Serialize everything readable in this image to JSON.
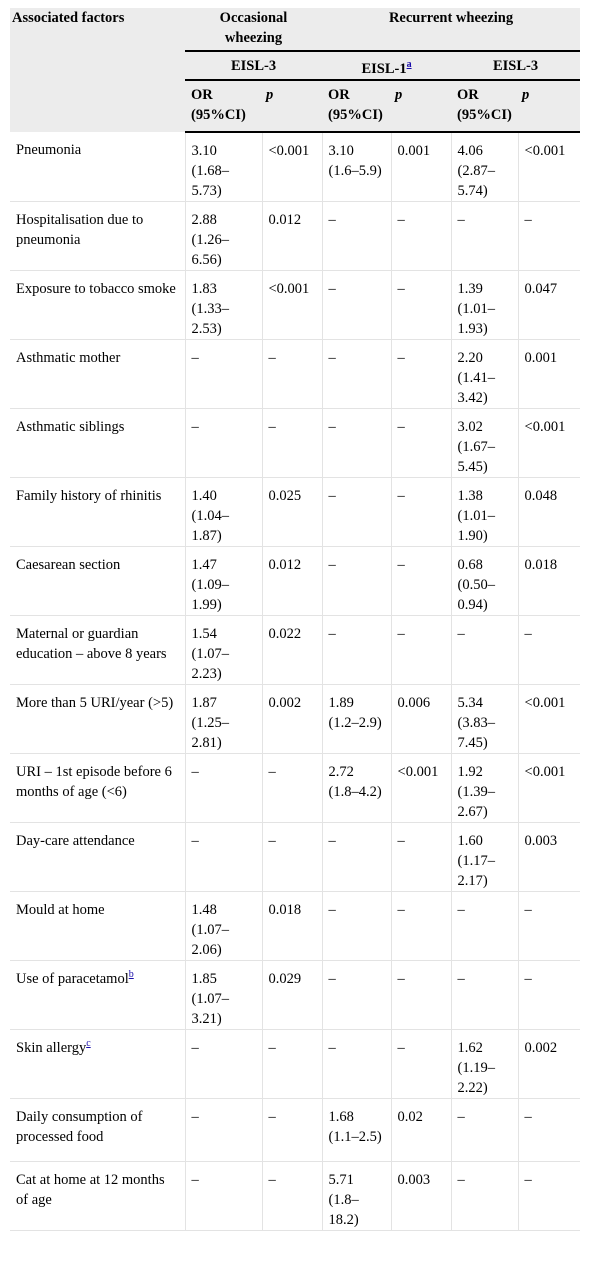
{
  "table": {
    "header": {
      "associated_factors": "Associated factors",
      "occasional_wheezing": "Occasional wheezing",
      "recurrent_wheezing": "Recurrent wheezing",
      "eisl3_occ": "EISL-3",
      "eisl1": "EISL-1",
      "eisl1_note": "a",
      "eisl3_rec": "EISL-3",
      "or_ci": "OR (95%CI)",
      "p": "p"
    },
    "rows": [
      {
        "factor": "Pneumonia",
        "note": "",
        "v": [
          "3.10 (1.68–5.73)",
          "<0.001",
          "3.10 (1.6–5.9)",
          "0.001",
          "4.06 (2.87–5.74)",
          "<0.001"
        ]
      },
      {
        "factor": "Hospitalisation due to pneumonia",
        "note": "",
        "v": [
          "2.88 (1.26–6.56)",
          "0.012",
          "–",
          "–",
          "–",
          "–"
        ]
      },
      {
        "factor": "Exposure to tobacco smoke",
        "note": "",
        "v": [
          "1.83 (1.33–2.53)",
          "<0.001",
          "–",
          "–",
          "1.39 (1.01–1.93)",
          "0.047"
        ]
      },
      {
        "factor": "Asthmatic mother",
        "note": "",
        "v": [
          "–",
          "–",
          "–",
          "–",
          "2.20 (1.41–3.42)",
          "0.001"
        ]
      },
      {
        "factor": "Asthmatic siblings",
        "note": "",
        "v": [
          "–",
          "–",
          "–",
          "–",
          "3.02 (1.67–5.45)",
          "<0.001"
        ]
      },
      {
        "factor": "Family history of rhinitis",
        "note": "",
        "v": [
          "1.40 (1.04–1.87)",
          "0.025",
          "–",
          "–",
          "1.38 (1.01–1.90)",
          "0.048"
        ]
      },
      {
        "factor": "Caesarean section",
        "note": "",
        "v": [
          "1.47 (1.09–1.99)",
          "0.012",
          "–",
          "–",
          "0.68 (0.50–0.94)",
          "0.018"
        ]
      },
      {
        "factor": "Maternal or guardian education – above 8 years",
        "note": "",
        "v": [
          "1.54 (1.07–2.23)",
          "0.022",
          "–",
          "–",
          "–",
          "–"
        ]
      },
      {
        "factor": "More than 5 URI/year (>5)",
        "note": "",
        "v": [
          "1.87 (1.25–2.81)",
          "0.002",
          "1.89 (1.2–2.9)",
          "0.006",
          "5.34 (3.83–7.45)",
          "<0.001"
        ]
      },
      {
        "factor": "URI – 1st episode before 6 months of age (<6)",
        "note": "",
        "v": [
          "–",
          "–",
          "2.72 (1.8–4.2)",
          "<0.001",
          "1.92 (1.39–2.67)",
          "<0.001"
        ]
      },
      {
        "factor": "Day-care attendance",
        "note": "",
        "v": [
          "–",
          "–",
          "–",
          "–",
          "1.60 (1.17–2.17)",
          "0.003"
        ]
      },
      {
        "factor": "Mould at home",
        "note": "",
        "v": [
          "1.48 (1.07–2.06)",
          "0.018",
          "–",
          "–",
          "–",
          "–"
        ]
      },
      {
        "factor": "Use of paracetamol",
        "note": "b",
        "v": [
          "1.85 (1.07–3.21)",
          "0.029",
          "–",
          "–",
          "–",
          "–"
        ]
      },
      {
        "factor": "Skin allergy",
        "note": "c",
        "v": [
          "–",
          "–",
          "–",
          "–",
          "1.62 (1.19–2.22)",
          "0.002"
        ]
      },
      {
        "factor": "Daily consumption of processed food",
        "note": "",
        "v": [
          "–",
          "–",
          "1.68 (1.1–2.5)",
          "0.02",
          "–",
          "–"
        ]
      },
      {
        "factor": "Cat at home at 12 months of age",
        "note": "",
        "v": [
          "–",
          "–",
          "5.71 (1.8–18.2)",
          "0.003",
          "–",
          "–"
        ]
      }
    ]
  }
}
